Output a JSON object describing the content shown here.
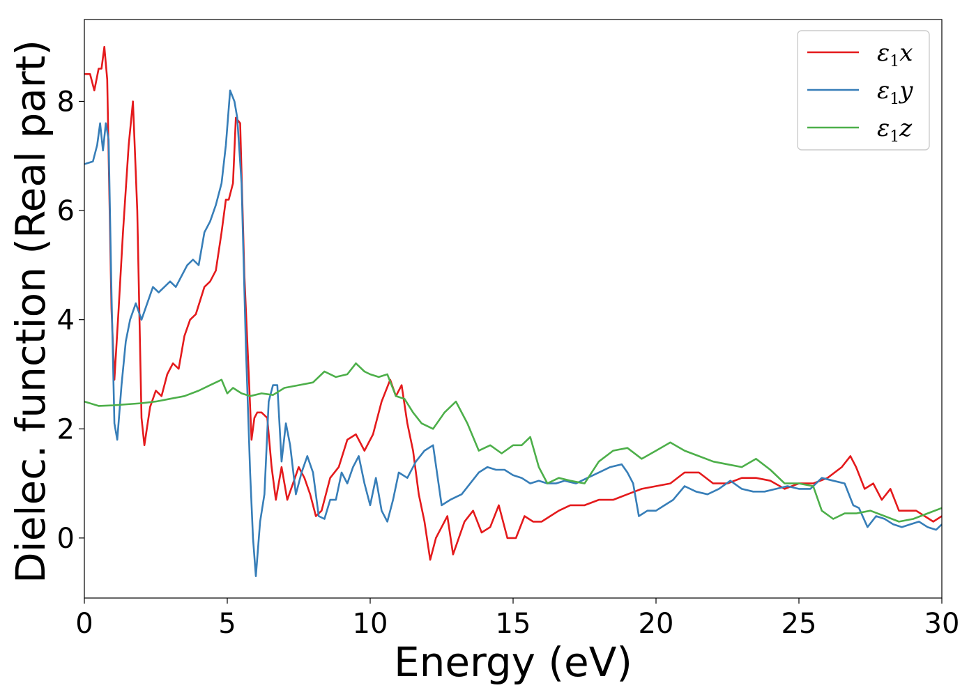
{
  "chart_data": {
    "type": "line",
    "xlabel": "Energy (eV)",
    "ylabel": "Dielec. function (Real part)",
    "xlim": [
      0,
      30
    ],
    "ylim": [
      -1.1,
      9.5
    ],
    "xticks": [
      0,
      5,
      10,
      15,
      20,
      25,
      30
    ],
    "yticks": [
      0,
      2,
      4,
      6,
      8
    ],
    "grid": false,
    "legend_position": "top-right",
    "series": [
      {
        "name": "ε1x",
        "legend_main": "ε",
        "legend_sub": "1",
        "legend_var": "x",
        "color": "#e41a1c",
        "x": [
          0,
          0.2,
          0.35,
          0.5,
          0.6,
          0.7,
          0.8,
          0.95,
          1.05,
          1.2,
          1.35,
          1.55,
          1.7,
          1.85,
          2.0,
          2.1,
          2.3,
          2.5,
          2.7,
          2.9,
          3.1,
          3.3,
          3.5,
          3.7,
          3.9,
          4.2,
          4.4,
          4.6,
          4.8,
          4.95,
          5.05,
          5.2,
          5.3,
          5.45,
          5.6,
          5.75,
          5.85,
          5.95,
          6.05,
          6.2,
          6.4,
          6.55,
          6.7,
          6.9,
          7.1,
          7.3,
          7.5,
          7.7,
          7.9,
          8.1,
          8.3,
          8.6,
          8.9,
          9.2,
          9.5,
          9.8,
          10.1,
          10.4,
          10.7,
          10.9,
          11.1,
          11.3,
          11.5,
          11.7,
          11.9,
          12.1,
          12.3,
          12.5,
          12.7,
          12.9,
          13.1,
          13.3,
          13.6,
          13.9,
          14.2,
          14.5,
          14.8,
          15.1,
          15.4,
          15.7,
          16.0,
          16.3,
          16.6,
          17.0,
          17.5,
          18.0,
          18.5,
          19.0,
          19.5,
          20.0,
          20.5,
          21.0,
          21.5,
          22.0,
          22.5,
          23.0,
          23.5,
          24.0,
          24.5,
          25.0,
          25.5,
          26.0,
          26.5,
          26.8,
          27.0,
          27.3,
          27.6,
          27.9,
          28.2,
          28.5,
          28.8,
          29.1,
          29.4,
          29.7,
          30.0
        ],
        "y": [
          8.5,
          8.5,
          8.2,
          8.6,
          8.6,
          9.0,
          8.4,
          4.2,
          2.9,
          4.2,
          5.6,
          7.2,
          8.0,
          6.0,
          2.2,
          1.7,
          2.4,
          2.7,
          2.6,
          3.0,
          3.2,
          3.1,
          3.7,
          4.0,
          4.1,
          4.6,
          4.7,
          4.9,
          5.6,
          6.2,
          6.2,
          6.5,
          7.7,
          7.6,
          4.8,
          3.0,
          1.8,
          2.2,
          2.3,
          2.3,
          2.2,
          1.3,
          0.7,
          1.3,
          0.7,
          1.0,
          1.3,
          1.1,
          0.8,
          0.4,
          0.5,
          1.1,
          1.3,
          1.8,
          1.9,
          1.6,
          1.9,
          2.5,
          2.9,
          2.6,
          2.8,
          2.1,
          1.6,
          0.8,
          0.3,
          -0.4,
          0.0,
          0.2,
          0.4,
          -0.3,
          0.0,
          0.3,
          0.5,
          0.1,
          0.2,
          0.6,
          0.0,
          0.0,
          0.4,
          0.3,
          0.3,
          0.4,
          0.5,
          0.6,
          0.6,
          0.7,
          0.7,
          0.8,
          0.9,
          0.95,
          1.0,
          1.2,
          1.2,
          1.0,
          1.0,
          1.1,
          1.1,
          1.05,
          0.9,
          1.0,
          1.0,
          1.1,
          1.3,
          1.5,
          1.3,
          0.9,
          1.0,
          0.7,
          0.9,
          0.5,
          0.5,
          0.5,
          0.4,
          0.3,
          0.4
        ]
      },
      {
        "name": "ε1y",
        "legend_main": "ε",
        "legend_sub": "1",
        "legend_var": "y",
        "color": "#377eb8",
        "x": [
          0,
          0.3,
          0.45,
          0.55,
          0.65,
          0.75,
          0.85,
          0.95,
          1.05,
          1.15,
          1.3,
          1.45,
          1.6,
          1.8,
          2.0,
          2.2,
          2.4,
          2.6,
          2.8,
          3.0,
          3.2,
          3.4,
          3.6,
          3.8,
          4.0,
          4.2,
          4.4,
          4.6,
          4.8,
          4.95,
          5.1,
          5.25,
          5.35,
          5.5,
          5.65,
          5.8,
          5.9,
          6.0,
          6.15,
          6.3,
          6.45,
          6.6,
          6.75,
          6.9,
          7.05,
          7.2,
          7.4,
          7.6,
          7.8,
          8.0,
          8.2,
          8.4,
          8.6,
          8.8,
          9.0,
          9.2,
          9.4,
          9.6,
          9.8,
          10.0,
          10.2,
          10.4,
          10.6,
          10.8,
          11.0,
          11.3,
          11.6,
          11.9,
          12.2,
          12.5,
          12.8,
          13.0,
          13.2,
          13.5,
          13.8,
          14.1,
          14.4,
          14.7,
          15.0,
          15.3,
          15.6,
          15.9,
          16.2,
          16.5,
          16.8,
          17.2,
          17.6,
          18.0,
          18.4,
          18.8,
          19.0,
          19.2,
          19.4,
          19.7,
          20.0,
          20.3,
          20.6,
          21.0,
          21.4,
          21.8,
          22.2,
          22.6,
          23.0,
          23.4,
          23.8,
          24.2,
          24.6,
          25.0,
          25.4,
          25.8,
          26.2,
          26.6,
          26.9,
          27.1,
          27.4,
          27.7,
          28.0,
          28.3,
          28.6,
          28.9,
          29.2,
          29.5,
          29.8,
          30.0
        ],
        "y": [
          6.85,
          6.9,
          7.2,
          7.6,
          7.1,
          7.6,
          7.3,
          4.5,
          2.1,
          1.8,
          2.8,
          3.6,
          4.0,
          4.3,
          4.0,
          4.3,
          4.6,
          4.5,
          4.6,
          4.7,
          4.6,
          4.8,
          5.0,
          5.1,
          5.0,
          5.6,
          5.8,
          6.1,
          6.5,
          7.2,
          8.2,
          8.0,
          7.7,
          6.5,
          3.5,
          1.2,
          0.0,
          -0.7,
          0.3,
          0.8,
          2.5,
          2.8,
          2.8,
          1.4,
          2.1,
          1.7,
          0.8,
          1.2,
          1.5,
          1.2,
          0.4,
          0.35,
          0.7,
          0.7,
          1.2,
          1.0,
          1.3,
          1.5,
          1.0,
          0.6,
          1.1,
          0.5,
          0.3,
          0.7,
          1.2,
          1.1,
          1.4,
          1.6,
          1.7,
          0.6,
          0.7,
          0.75,
          0.8,
          1.0,
          1.2,
          1.3,
          1.25,
          1.25,
          1.15,
          1.1,
          1.0,
          1.05,
          1.0,
          1.0,
          1.05,
          1.0,
          1.1,
          1.2,
          1.3,
          1.35,
          1.2,
          1.0,
          0.4,
          0.5,
          0.5,
          0.6,
          0.7,
          0.95,
          0.85,
          0.8,
          0.9,
          1.05,
          0.9,
          0.85,
          0.85,
          0.9,
          0.95,
          0.9,
          0.9,
          1.1,
          1.05,
          1.0,
          0.6,
          0.55,
          0.2,
          0.4,
          0.35,
          0.25,
          0.2,
          0.25,
          0.3,
          0.2,
          0.15,
          0.25
        ]
      },
      {
        "name": "ε1z",
        "legend_main": "ε",
        "legend_sub": "1",
        "legend_var": "z",
        "color": "#4daf4a",
        "x": [
          0,
          0.5,
          1.0,
          1.5,
          2.0,
          2.5,
          3.0,
          3.5,
          4.0,
          4.4,
          4.8,
          5.0,
          5.2,
          5.5,
          5.8,
          6.2,
          6.6,
          7.0,
          7.5,
          8.0,
          8.4,
          8.8,
          9.2,
          9.5,
          9.8,
          10.0,
          10.3,
          10.6,
          10.9,
          11.2,
          11.5,
          11.8,
          12.2,
          12.6,
          13.0,
          13.4,
          13.8,
          14.2,
          14.6,
          15.0,
          15.3,
          15.6,
          15.9,
          16.2,
          16.6,
          17.0,
          17.5,
          18.0,
          18.5,
          19.0,
          19.5,
          20.0,
          20.5,
          21.0,
          21.5,
          22.0,
          22.5,
          23.0,
          23.5,
          24.0,
          24.5,
          25.0,
          25.5,
          25.8,
          26.2,
          26.6,
          27.0,
          27.5,
          28.0,
          28.5,
          29.0,
          29.5,
          30.0
        ],
        "y": [
          2.5,
          2.42,
          2.43,
          2.45,
          2.47,
          2.5,
          2.55,
          2.6,
          2.7,
          2.8,
          2.9,
          2.65,
          2.75,
          2.65,
          2.6,
          2.65,
          2.62,
          2.75,
          2.8,
          2.85,
          3.05,
          2.95,
          3.0,
          3.2,
          3.05,
          3.0,
          2.95,
          3.0,
          2.6,
          2.55,
          2.3,
          2.1,
          2.0,
          2.3,
          2.5,
          2.1,
          1.6,
          1.7,
          1.55,
          1.7,
          1.7,
          1.85,
          1.3,
          1.0,
          1.1,
          1.05,
          1.0,
          1.4,
          1.6,
          1.65,
          1.45,
          1.6,
          1.75,
          1.6,
          1.5,
          1.4,
          1.35,
          1.3,
          1.45,
          1.25,
          1.0,
          1.0,
          0.95,
          0.5,
          0.35,
          0.45,
          0.45,
          0.5,
          0.4,
          0.3,
          0.35,
          0.45,
          0.55
        ]
      }
    ]
  }
}
